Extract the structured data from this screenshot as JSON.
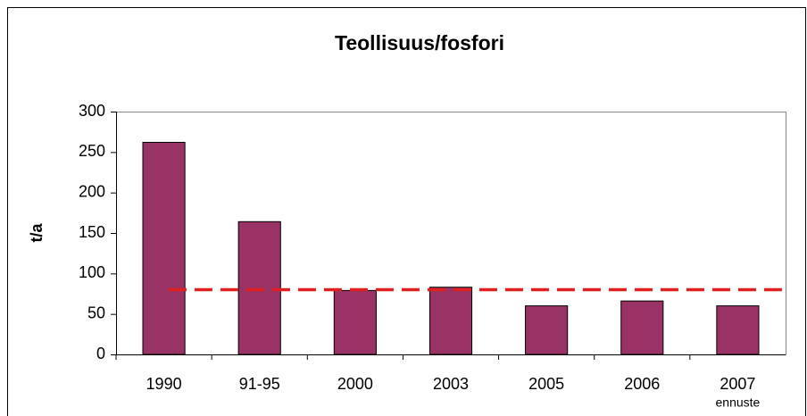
{
  "chart_data": {
    "type": "bar",
    "title": "Teollisuus/fosfori",
    "y_label": "t/a",
    "categories": [
      "1990",
      "91-95",
      "2000",
      "2003",
      "2005",
      "2006",
      "2007"
    ],
    "category_notes": [
      null,
      null,
      null,
      null,
      null,
      null,
      "ennuste"
    ],
    "values": [
      262,
      164,
      79,
      83,
      60,
      66,
      60
    ],
    "color": "#993366",
    "reference_line": {
      "value": 80,
      "color": "#e02020",
      "dashed": true
    },
    "ylim": [
      0,
      300
    ],
    "yticks": [
      0,
      50,
      100,
      150,
      200,
      250,
      300
    ],
    "grid": false
  }
}
